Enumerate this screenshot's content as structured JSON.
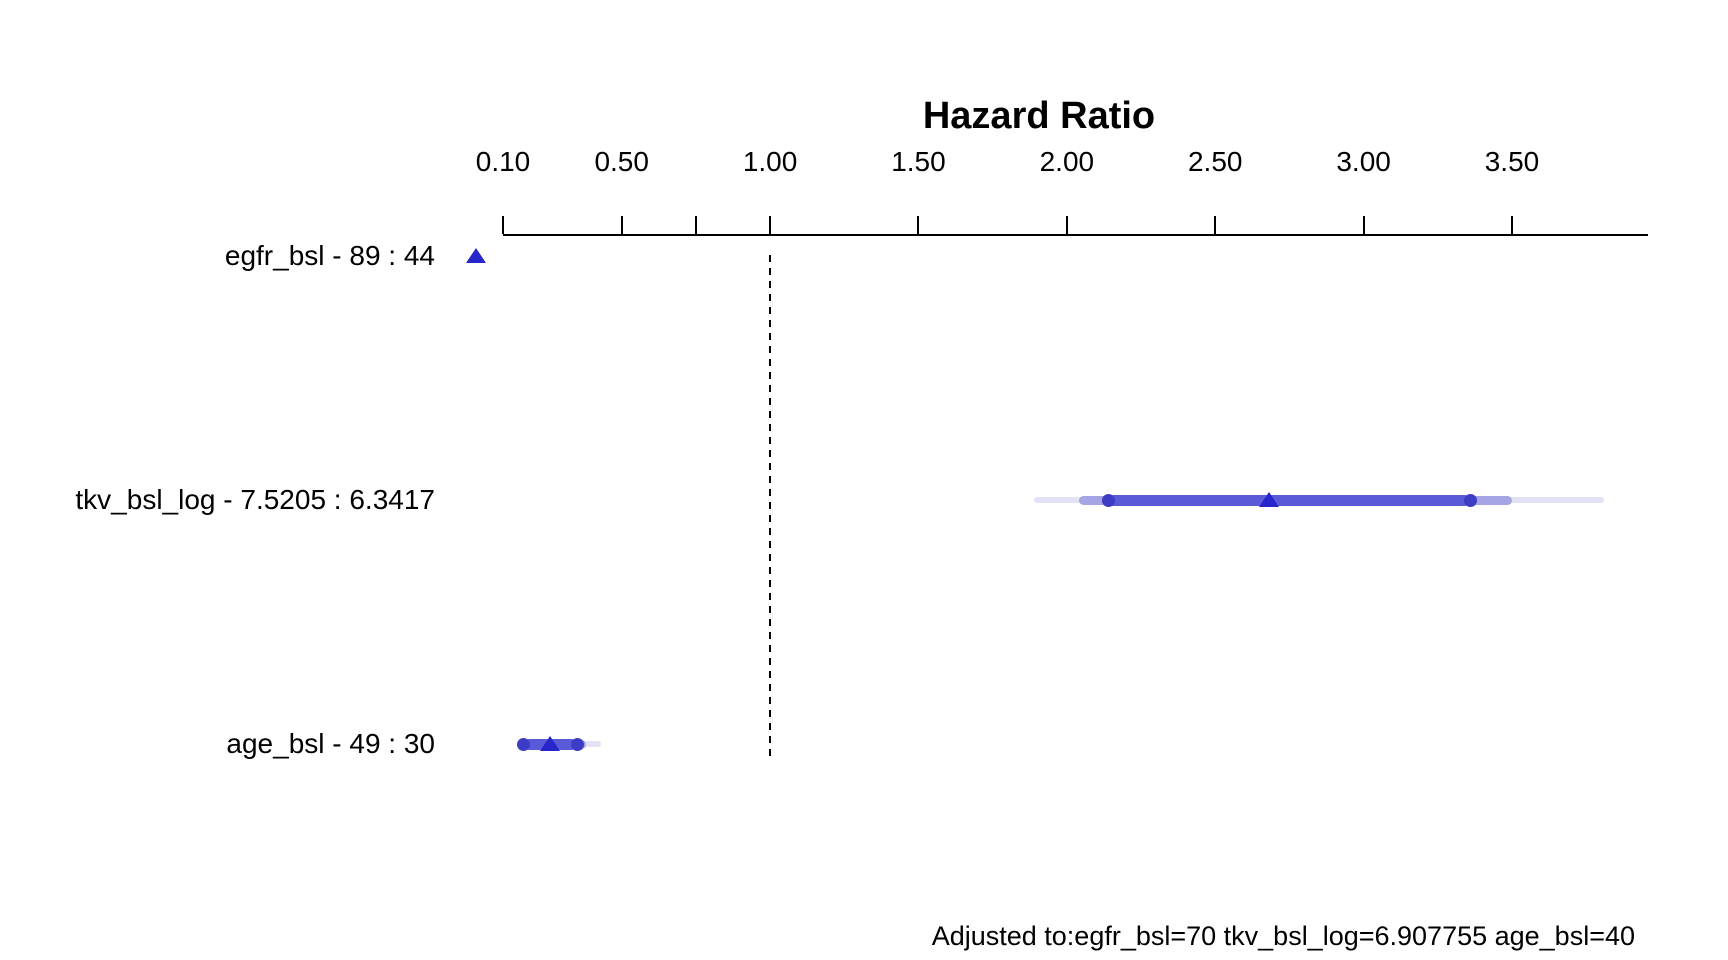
{
  "colors": {
    "marker": "#2626cb",
    "band_inner": "#5a5ad9",
    "band_mid": "#a5a5e5",
    "band_outer": "#e2e2f4",
    "end_dot": "#3c3cc4",
    "axis": "#000000",
    "text": "#000000"
  },
  "footnote": "Adjusted to:egfr_bsl=70 tkv_bsl_log=6.907755 age_bsl=40",
  "chart_data": {
    "type": "scatter",
    "subtype": "forest-plot-hazard-ratio",
    "title": "Hazard Ratio",
    "xlabel": "",
    "ylabel": "",
    "axis": {
      "scale": "linear",
      "xlim": [
        0.1,
        3.96
      ],
      "ticks": [
        {
          "value": 0.1,
          "label": "0.10"
        },
        {
          "value": 0.5,
          "label": "0.50"
        },
        {
          "value": 1.0,
          "label": "1.00"
        },
        {
          "value": 1.5,
          "label": "1.50"
        },
        {
          "value": 2.0,
          "label": "2.00"
        },
        {
          "value": 2.5,
          "label": "2.50"
        },
        {
          "value": 3.0,
          "label": "3.00"
        },
        {
          "value": 3.5,
          "label": "3.50"
        }
      ],
      "minor_ticks": [
        0.75
      ],
      "reference_line": 1.0,
      "grid": false
    },
    "rows": [
      {
        "label": "egfr_bsl - 89 : 44",
        "point": 0.01,
        "point_offscale_low": true,
        "ci_inner": null,
        "ci_mid": null,
        "ci_outer": null
      },
      {
        "label": "tkv_bsl_log - 7.5205 : 6.3417",
        "point": 2.68,
        "point_offscale_low": false,
        "ci_inner": [
          2.14,
          3.36
        ],
        "ci_mid": [
          2.04,
          3.5
        ],
        "ci_outer": [
          1.89,
          3.81
        ]
      },
      {
        "label": "age_bsl - 49 : 30",
        "point": 0.26,
        "point_offscale_low": false,
        "ci_inner": [
          0.17,
          0.35
        ],
        "ci_mid": [
          0.16,
          0.38
        ],
        "ci_outer": [
          0.15,
          0.43
        ]
      }
    ],
    "annotations": [
      "Adjusted to:egfr_bsl=70 tkv_bsl_log=6.907755 age_bsl=40"
    ],
    "legend": null
  }
}
